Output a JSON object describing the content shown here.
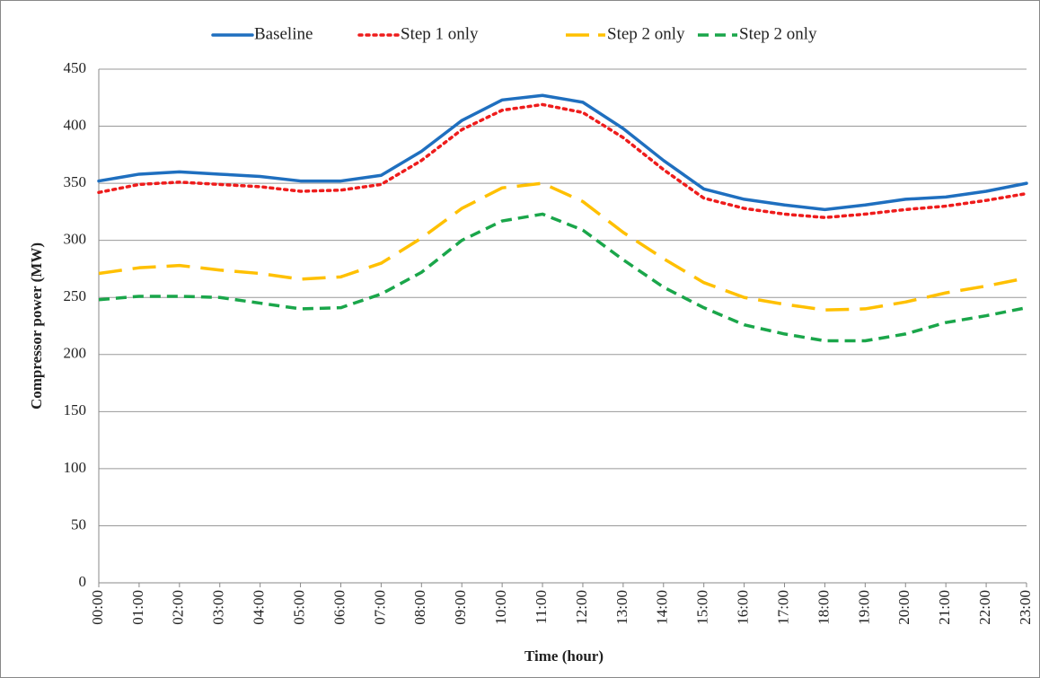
{
  "chart_data": {
    "type": "line",
    "x_label": "Time (hour)",
    "y_label": "Compressor power (MW)",
    "categories": [
      "00:00",
      "01:00",
      "02:00",
      "03:00",
      "04:00",
      "05:00",
      "06:00",
      "07:00",
      "08:00",
      "09:00",
      "10:00",
      "11:00",
      "12:00",
      "13:00",
      "14:00",
      "15:00",
      "16:00",
      "17:00",
      "18:00",
      "19:00",
      "20:00",
      "21:00",
      "22:00",
      "23:00"
    ],
    "series": [
      {
        "name": "Baseline",
        "color": "#1f6fbf",
        "values": [
          352,
          358,
          360,
          358,
          356,
          352,
          352,
          357,
          378,
          405,
          423,
          427,
          421,
          398,
          370,
          345,
          336,
          331,
          327,
          331,
          336,
          338,
          343,
          350
        ]
      },
      {
        "name": "Step 1 only",
        "color": "#ee1c1c",
        "values": [
          342,
          349,
          351,
          349,
          347,
          343,
          344,
          349,
          370,
          397,
          414,
          419,
          412,
          390,
          362,
          337,
          328,
          323,
          320,
          323,
          327,
          330,
          335,
          341
        ]
      },
      {
        "name": "Step 2 only",
        "color": "#ffc000",
        "values": [
          271,
          276,
          278,
          274,
          271,
          266,
          268,
          280,
          302,
          328,
          346,
          350,
          334,
          307,
          284,
          263,
          250,
          244,
          239,
          240,
          246,
          254,
          260,
          267
        ]
      },
      {
        "name": "Step 2 only",
        "color": "#1aa64a",
        "values": [
          248,
          251,
          251,
          250,
          245,
          240,
          241,
          253,
          272,
          300,
          317,
          323,
          309,
          283,
          259,
          241,
          226,
          218,
          212,
          212,
          218,
          228,
          234,
          241
        ]
      }
    ],
    "ylim": [
      0,
      450
    ],
    "yticks": [
      0,
      50,
      100,
      150,
      200,
      250,
      300,
      350,
      400,
      450
    ],
    "grid": true,
    "legend": "top"
  }
}
